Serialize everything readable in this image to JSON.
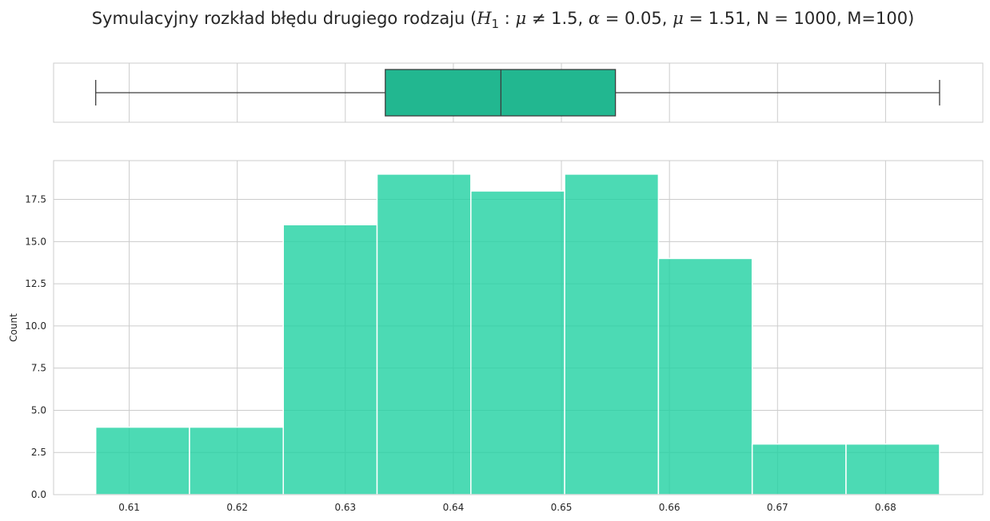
{
  "chart_data": [
    {
      "type": "box",
      "title_parts": [
        "Symulacyjny rozkład błędu drugiego rodzaju (",
        "H",
        "1",
        " : ",
        "μ",
        " ≠ 1.5,  ",
        "α",
        " = 0.05,  ",
        "μ",
        " = 1.51",
        ", N = 1000, M=100)"
      ],
      "whisker_low": 0.6069,
      "q1": 0.6337,
      "median": 0.6444,
      "q3": 0.655,
      "whisker_high": 0.685,
      "xlim": [
        0.603,
        0.689
      ],
      "grid": true,
      "colors": {
        "box": "#22b790",
        "line": "#3d3d3d",
        "grid": "#cccccc"
      }
    },
    {
      "type": "bar",
      "subtype": "histogram",
      "bin_edges": [
        0.6069,
        0.61558,
        0.62426,
        0.63294,
        0.64162,
        0.6503,
        0.65898,
        0.66766,
        0.67634,
        0.685
      ],
      "values": [
        4,
        4,
        16,
        19,
        18,
        19,
        14,
        3,
        3
      ],
      "xlim": [
        0.603,
        0.689
      ],
      "ylim": [
        0,
        19.8
      ],
      "xticks": [
        0.61,
        0.62,
        0.63,
        0.64,
        0.65,
        0.66,
        0.67,
        0.68
      ],
      "xtick_labels": [
        "0.61",
        "0.62",
        "0.63",
        "0.64",
        "0.65",
        "0.66",
        "0.67",
        "0.68"
      ],
      "yticks": [
        0,
        2.5,
        5,
        7.5,
        10,
        12.5,
        15,
        17.5
      ],
      "ytick_labels": [
        "0.0",
        "2.5",
        "5.0",
        "7.5",
        "10.0",
        "12.5",
        "15.0",
        "17.5"
      ],
      "xlabel": "",
      "ylabel": "Count",
      "grid": true,
      "colors": {
        "bar": "#1fd1a1",
        "edge": "#ffffff",
        "grid": "#cccccc"
      }
    }
  ]
}
